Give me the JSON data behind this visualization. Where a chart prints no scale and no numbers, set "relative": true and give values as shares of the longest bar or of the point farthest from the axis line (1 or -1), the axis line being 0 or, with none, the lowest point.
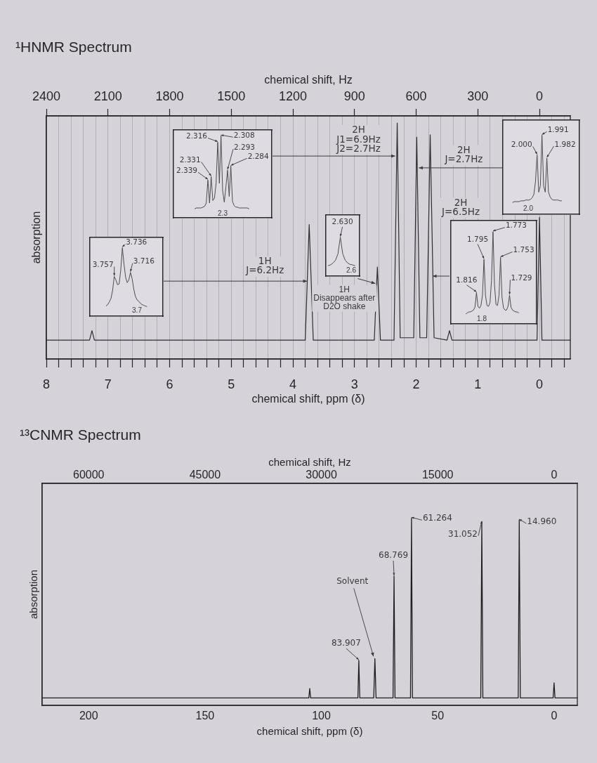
{
  "chart_data": [
    {
      "type": "line",
      "title": "¹HNMR Spectrum",
      "xlabel": "chemical shift, ppm (δ)",
      "x2label": "chemical shift, Hz",
      "ylabel": "absorption",
      "relative": true,
      "marker": "none",
      "grid": "x",
      "xlim": [
        8,
        -0.5
      ],
      "xticks": [
        8,
        {
          "value": 7.8,
          "label": null
        },
        {
          "value": 7.6,
          "label": null
        },
        {
          "value": 7.4,
          "label": null
        },
        {
          "value": 7.2,
          "label": null
        },
        7,
        {
          "value": 6.8,
          "label": null
        },
        {
          "value": 6.6,
          "label": null
        },
        {
          "value": 6.4,
          "label": null
        },
        {
          "value": 6.2,
          "label": null
        },
        6,
        {
          "value": 5.8,
          "label": null
        },
        {
          "value": 5.6,
          "label": null
        },
        {
          "value": 5.4,
          "label": null
        },
        {
          "value": 5.2,
          "label": null
        },
        5,
        {
          "value": 4.8,
          "label": null
        },
        {
          "value": 4.6,
          "label": null
        },
        {
          "value": 4.4,
          "label": null
        },
        {
          "value": 4.2,
          "label": null
        },
        4,
        {
          "value": 3.8,
          "label": null
        },
        {
          "value": 3.6,
          "label": null
        },
        {
          "value": 3.4,
          "label": null
        },
        {
          "value": 3.2,
          "label": null
        },
        3,
        {
          "value": 2.8,
          "label": null
        },
        {
          "value": 2.6,
          "label": null
        },
        {
          "value": 2.4,
          "label": null
        },
        {
          "value": 2.2,
          "label": null
        },
        2,
        {
          "value": 1.8,
          "label": null
        },
        {
          "value": 1.6,
          "label": null
        },
        {
          "value": 1.4,
          "label": null
        },
        {
          "value": 1.2,
          "label": null
        },
        1,
        {
          "value": 0.8,
          "label": null
        },
        {
          "value": 0.6,
          "label": null
        },
        {
          "value": 0.4,
          "label": null
        },
        {
          "value": 0.2,
          "label": null
        },
        0,
        {
          "value": -0.2,
          "label": null
        },
        {
          "value": -0.4,
          "label": null
        }
      ],
      "x2lim": [
        2400,
        -150
      ],
      "x2ticks": [
        2400,
        2100,
        1800,
        1500,
        1200,
        900,
        600,
        300,
        0
      ],
      "series": [
        {
          "color": "#2e2e2e",
          "x": [
            8,
            7.3,
            7.26,
            7.22,
            3.8,
            3.736,
            3.67,
            2.68,
            2.63,
            2.58,
            2.36,
            2.308,
            2.26,
            2.04,
            1.991,
            1.94,
            1.83,
            1.773,
            1.71,
            1.5,
            1.46,
            1.42,
            0.04,
            0,
            -0.04,
            -0.5
          ],
          "values": [
            0.08,
            0.08,
            0.12,
            0.08,
            0.08,
            0.57,
            0.08,
            0.08,
            0.39,
            0.08,
            0.08,
            1,
            0.09,
            0.09,
            0.94,
            0.09,
            0.09,
            0.95,
            0.09,
            0.08,
            0.12,
            0.08,
            0.08,
            0.6,
            0.08,
            0.08
          ]
        }
      ],
      "annotations": [
        {
          "text": "2H\nJ1=6.9Hz\nJ2=2.7Hz",
          "x": 2.308,
          "y": 0.86
        },
        {
          "text": "2H\nJ=2.7Hz",
          "x": 1.991,
          "y": 0.81
        },
        "2H\nJ=6.5Hz",
        {
          "text": "1H\nJ=6.2Hz",
          "x": 3.736,
          "y": 0.33
        },
        {
          "text": "1H\nDisappears after\nD2O shake",
          "x": 2.63,
          "y": 0.32
        }
      ]
    },
    {
      "type": "line",
      "relative": true,
      "marker": "none",
      "categories": [
        null,
        null,
        null,
        null,
        null,
        null,
        null,
        null,
        null,
        null,
        null,
        null,
        null,
        null,
        null,
        null,
        null,
        null,
        null,
        null,
        null,
        null,
        null,
        null,
        null,
        null,
        null,
        null,
        null,
        null,
        null,
        null,
        null,
        null,
        null,
        null,
        null,
        null,
        null,
        null,
        null,
        null,
        null,
        null,
        null,
        null,
        null,
        null,
        null,
        null,
        null,
        null,
        null,
        null,
        null,
        null,
        null,
        null,
        null,
        null,
        null
      ],
      "series": [
        {
          "color": "#4d4d4d",
          "values": [
            null,
            null,
            null,
            null,
            null,
            null,
            null,
            null,
            null,
            null,
            null,
            null,
            null,
            0.11,
            0.12,
            0.12,
            0.12,
            0.12,
            0.13,
            0.14,
            0.18,
            0.46,
            0.18,
            0.5,
            0.21,
            0.24,
            0.42,
            0.92,
            0.42,
            1,
            0.33,
            0.19,
            0.38,
            0.58,
            0.26,
            0.63,
            0.2,
            0.15,
            0.13,
            0.13,
            0.12,
            0.12,
            0.12,
            0.12,
            0.12,
            0.12,
            0.11,
            null,
            null,
            null,
            null,
            null,
            null,
            null,
            null,
            null,
            null,
            null,
            null,
            null,
            null
          ]
        }
      ],
      "annotations": [
        "2.339",
        "2.331",
        "2.316",
        "2.308",
        "2.293",
        "2.284",
        "2.3"
      ]
    },
    {
      "type": "line",
      "relative": true,
      "marker": "none",
      "categories": [
        null,
        null,
        null,
        null,
        null,
        null,
        null,
        null,
        null,
        null,
        null,
        null,
        null,
        null,
        null,
        null,
        null,
        null,
        null,
        null,
        null,
        null,
        null,
        null,
        null,
        null,
        null,
        null,
        null,
        null,
        null,
        null,
        null,
        null,
        null,
        null,
        null,
        null,
        null,
        null,
        null,
        null,
        null,
        null,
        null,
        null,
        null,
        null
      ],
      "series": [
        {
          "color": "#4d4d4d",
          "values": [
            null,
            null,
            null,
            null,
            null,
            null,
            0.15,
            0.16,
            0.16,
            0.16,
            0.16,
            0.17,
            0.17,
            0.17,
            0.18,
            0.18,
            0.18,
            0.19,
            0.21,
            0.25,
            0.41,
            0.75,
            0.28,
            0.36,
            1,
            0.36,
            0.28,
            0.71,
            0.28,
            0.22,
            0.19,
            0.18,
            0.18,
            0.18,
            0.18,
            0.17,
            0.17,
            null,
            null,
            null,
            null,
            null,
            null,
            null,
            null,
            null,
            null,
            null
          ]
        }
      ],
      "annotations": [
        "2.000",
        "1.991",
        "1.982",
        "2.0"
      ]
    },
    {
      "type": "line",
      "relative": true,
      "marker": "none",
      "categories": [
        null,
        null,
        null,
        null,
        null,
        null,
        null,
        null,
        null,
        null,
        null,
        null,
        null,
        null,
        null,
        null,
        null,
        null,
        null,
        null,
        null,
        null,
        null,
        null,
        null,
        null,
        null,
        null,
        null,
        null,
        null,
        null,
        null,
        null,
        null,
        null,
        null,
        null,
        null,
        null,
        null,
        null,
        null,
        null,
        null,
        null
      ],
      "series": [
        {
          "color": "#4d4d4d",
          "values": [
            null,
            null,
            null,
            null,
            null,
            null,
            null,
            null,
            null,
            null,
            0.15,
            0.17,
            0.21,
            0.26,
            0.38,
            0.58,
            0.53,
            0.46,
            0.47,
            0.67,
            1,
            0.76,
            0.57,
            0.49,
            0.53,
            0.64,
            0.55,
            0.4,
            0.29,
            0.24,
            0.22,
            0.19,
            0.17,
            0.16,
            0.15,
            0.14,
            null,
            null,
            null,
            null,
            null,
            null,
            null,
            null,
            null,
            null
          ]
        }
      ],
      "annotations": [
        "3.757",
        "3.736",
        "3.716",
        "3.7"
      ]
    },
    {
      "type": "line",
      "relative": true,
      "marker": "none",
      "categories": [
        null,
        null,
        null,
        null,
        null,
        null,
        null,
        null,
        null,
        null,
        null,
        null,
        null,
        null,
        null
      ],
      "series": [
        {
          "color": "#4d4d4d",
          "values": [
            null,
            0.27,
            0.29,
            0.34,
            0.41,
            0.57,
            1,
            0.57,
            0.41,
            0.34,
            0.3,
            0.29,
            0.27,
            null,
            null
          ]
        }
      ],
      "annotations": [
        "2.630",
        "2.6"
      ]
    },
    {
      "type": "line",
      "relative": true,
      "marker": "none",
      "categories": [
        null,
        null,
        null,
        null,
        null,
        null,
        null,
        null,
        null,
        null,
        null,
        null,
        null,
        null,
        null,
        null,
        null,
        null,
        null,
        null,
        null,
        null,
        null,
        null,
        null,
        null,
        null,
        null,
        null,
        null,
        null,
        null,
        null,
        null,
        null,
        null,
        null,
        null,
        null,
        null,
        null,
        null,
        null,
        null,
        null,
        null,
        null,
        null,
        null,
        null,
        null,
        null,
        null,
        null,
        null,
        null,
        null,
        null
      ],
      "series": [
        {
          "color": "#4d4d4d",
          "values": [
            null,
            null,
            null,
            null,
            null,
            null,
            null,
            null,
            null,
            null,
            0.11,
            0.12,
            0.13,
            0.13,
            0.14,
            0.15,
            0.18,
            0.34,
            0.19,
            0.17,
            0.2,
            0.31,
            0.7,
            0.31,
            0.2,
            0.19,
            0.23,
            0.47,
            1,
            0.42,
            0.21,
            0.2,
            0.31,
            0.72,
            0.29,
            0.17,
            0.15,
            0.15,
            0.19,
            0.31,
            0.18,
            0.15,
            0.14,
            0.13,
            0.13,
            0.12,
            null,
            null,
            null,
            null,
            null,
            null,
            null,
            null,
            null,
            null,
            null,
            null
          ]
        }
      ],
      "annotations": [
        "1.816",
        "1.795",
        "1.773",
        "1.753",
        "1.729",
        "1.8"
      ]
    },
    {
      "type": "line",
      "title": "¹³CNMR Spectrum",
      "xlabel": "chemical shift, ppm (δ)",
      "x2label": "chemical shift, Hz",
      "ylabel": "absorption",
      "relative": true,
      "marker": "none",
      "xlim": [
        220,
        -10
      ],
      "xticks": [
        200,
        150,
        100,
        50,
        0
      ],
      "x2lim": [
        66000,
        -3000
      ],
      "x2ticks": [
        60000,
        45000,
        30000,
        15000,
        0
      ],
      "series": [
        {
          "color": "#1f1f1f",
          "x": [
            220,
            105.4,
            105,
            104.6,
            84.3,
            83.907,
            83.5,
            77.5,
            77,
            76.5,
            69.2,
            68.769,
            68.35,
            61.7,
            61.264,
            60.85,
            31.5,
            31.052,
            30.6,
            15.4,
            14.96,
            14.5,
            0.4,
            0,
            -0.4,
            -10
          ],
          "values": [
            0.04,
            0.04,
            0.09,
            0.04,
            0.04,
            0.24,
            0.04,
            0.04,
            0.25,
            0.04,
            0.04,
            0.69,
            0.04,
            0.04,
            1,
            0.04,
            0.04,
            0.98,
            0.04,
            0.04,
            0.99,
            0.04,
            0.04,
            0.12,
            0.04,
            0.04
          ]
        }
      ],
      "annotations": [
        {
          "text": "83.907",
          "x": 83.907,
          "y": 0.24
        },
        {
          "text": "Solvent",
          "x": 77,
          "y": 0.25
        },
        {
          "text": "68.769",
          "x": 68.769,
          "y": 0.69
        },
        {
          "text": "61.264",
          "x": 61.264,
          "y": 1
        },
        {
          "text": "31.052",
          "x": 31.052,
          "y": 0.98
        },
        {
          "text": "14.960",
          "x": 14.96,
          "y": 0.99
        }
      ]
    }
  ]
}
